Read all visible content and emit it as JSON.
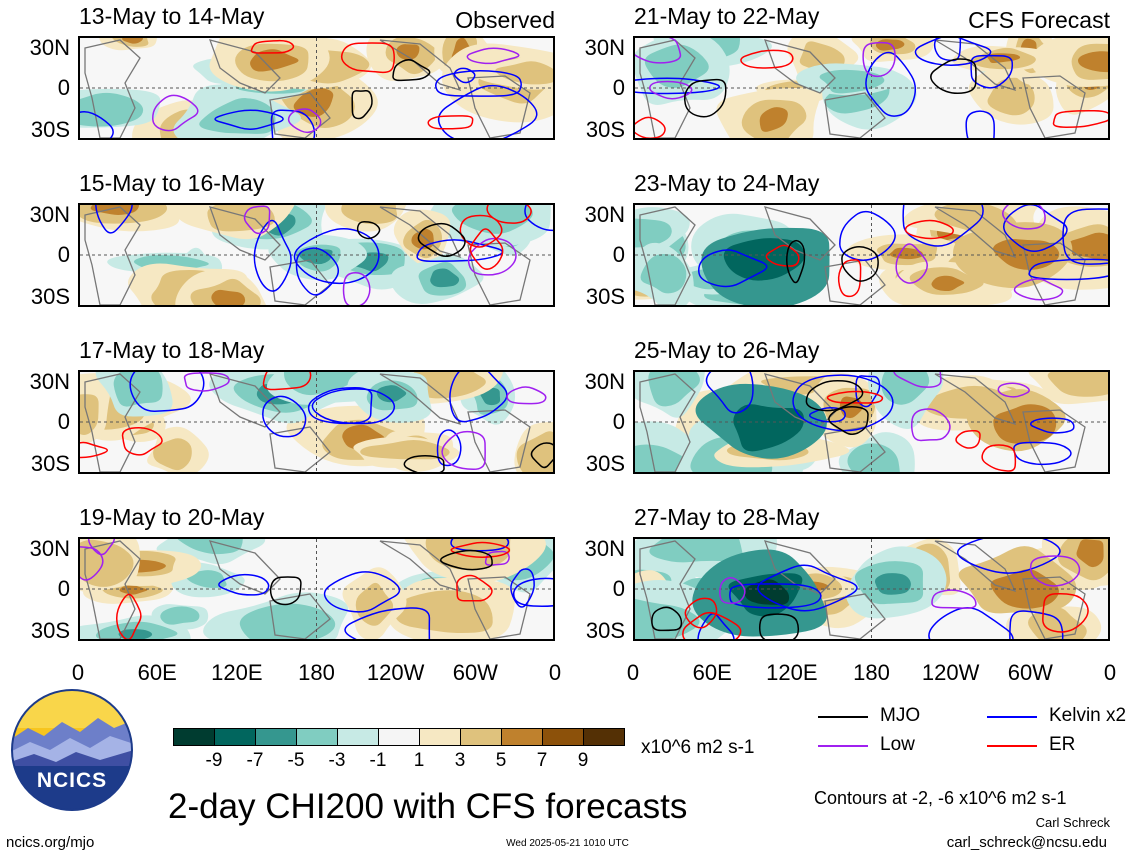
{
  "panels": [
    {
      "title": "13-May to 14-May",
      "tag": "Observed",
      "seed": 3
    },
    {
      "title": "15-May to 16-May",
      "tag": "",
      "seed": 11
    },
    {
      "title": "17-May to 18-May",
      "tag": "",
      "seed": 19
    },
    {
      "title": "19-May to 20-May",
      "tag": "",
      "seed": 27
    },
    {
      "title": "21-May to 22-May",
      "tag": "CFS Forecast",
      "seed": 35
    },
    {
      "title": "23-May to 24-May",
      "tag": "",
      "seed": 43
    },
    {
      "title": "25-May to 26-May",
      "tag": "",
      "seed": 51
    },
    {
      "title": "27-May to 28-May",
      "tag": "",
      "seed": 59
    }
  ],
  "lat_labels": [
    "30N",
    "0",
    "30S"
  ],
  "lon_labels": [
    "0",
    "60E",
    "120E",
    "180",
    "120W",
    "60W",
    "0"
  ],
  "colorbar": {
    "colors": [
      "#003c30",
      "#01665e",
      "#35978f",
      "#80cdc1",
      "#c7eae5",
      "#f5f5f5",
      "#f6e8c3",
      "#dfc27d",
      "#bf812d",
      "#8c510a",
      "#543005"
    ],
    "labels": [
      "-9",
      "-7",
      "-5",
      "-3",
      "-1",
      "1",
      "3",
      "5",
      "7",
      "9"
    ],
    "units": "x10^6 m2 s-1"
  },
  "legend": [
    {
      "label": "MJO",
      "color": "#000000"
    },
    {
      "label": "Kelvin x2",
      "color": "#0000ff"
    },
    {
      "label": "Low",
      "color": "#a020f0"
    },
    {
      "label": "ER",
      "color": "#ff0000"
    }
  ],
  "logo_text": "NCICS",
  "main_title": "2-day CHI200 with CFS forecasts",
  "contours_note": "Contours at -2, -6 x10^6 m2 s-1",
  "author": "Carl Schreck",
  "email": "carl_schreck@ncsu.edu",
  "url": "ncics.org/mjo",
  "timestamp": "Wed 2025-05-21 1010 UTC"
}
